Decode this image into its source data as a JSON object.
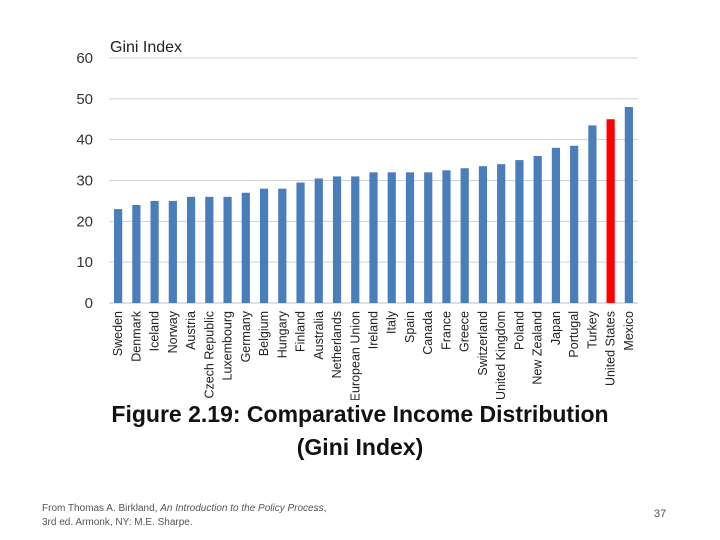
{
  "chart_data": {
    "type": "bar",
    "title": "Gini Index",
    "categories": [
      "Sweden",
      "Denmark",
      "Iceland",
      "Norway",
      "Austria",
      "Czech Republic",
      "Luxembourg",
      "Germany",
      "Belgium",
      "Hungary",
      "Finland",
      "Australia",
      "Netherlands",
      "European Union",
      "Ireland",
      "Italy",
      "Spain",
      "Canada",
      "France",
      "Greece",
      "Switzerland",
      "United Kingdom",
      "Poland",
      "New Zealand",
      "Japan",
      "Portugal",
      "Turkey",
      "United States",
      "Mexico"
    ],
    "values": [
      23,
      24,
      25,
      25,
      26,
      26,
      26,
      27,
      28,
      28,
      29.5,
      30.5,
      31,
      31,
      32,
      32,
      32,
      32,
      32.5,
      33,
      33.5,
      34,
      35,
      36,
      38,
      38.5,
      43.5,
      45,
      48
    ],
    "ylim": [
      0,
      60
    ],
    "yticks": [
      0,
      10,
      20,
      30,
      40,
      50,
      60
    ],
    "grid": true,
    "bar_color": "#4a7ebb",
    "highlight_category": "United States",
    "highlight_color": "#ff0000"
  },
  "caption": {
    "line1": "Figure 2.19: Comparative Income Distribution",
    "line2": "(Gini Index)"
  },
  "citation": {
    "prefix": "From Thomas A. Birkland, ",
    "title": "An Introduction to the Policy Process",
    "suffix": ", 3rd ed. Armonk, NY: M.E. Sharpe."
  },
  "page_number": "37"
}
